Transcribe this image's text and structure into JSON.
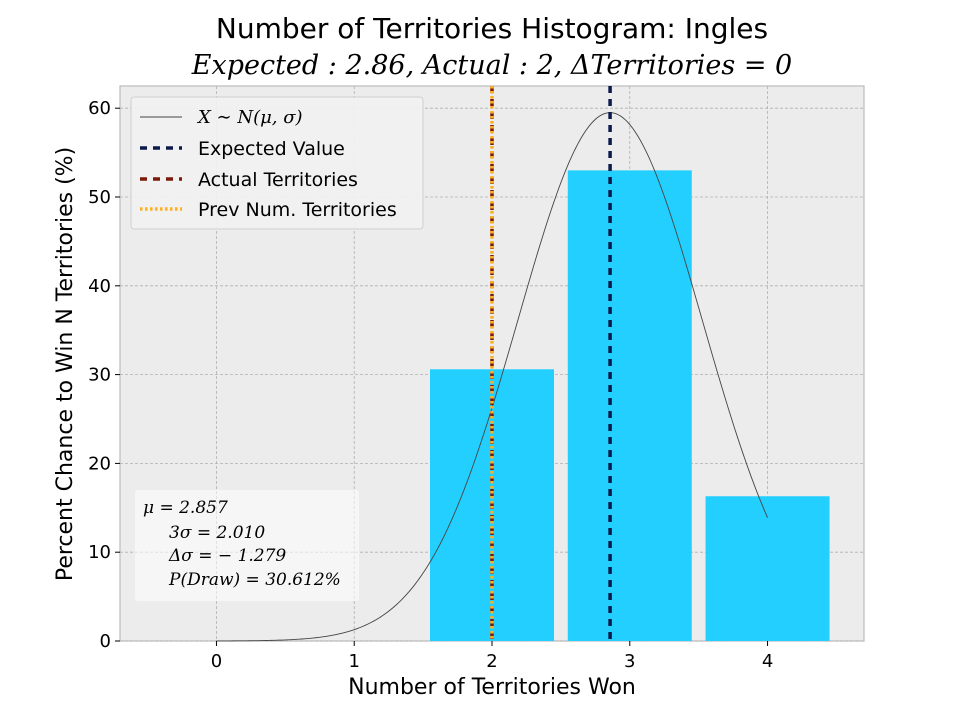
{
  "chart_data": {
    "type": "bar",
    "title": "Number of Territories Histogram: Ingles",
    "subtitle": "Expected : 2.86, Actual : 2, ΔTerritories = 0",
    "xlabel": "Number of Territories Won",
    "ylabel": "Percent Chance to Win N Territories (%)",
    "categories": [
      0,
      1,
      2,
      3,
      4
    ],
    "values": [
      0,
      0,
      30.6,
      53.0,
      16.3
    ],
    "xlim": [
      -0.7,
      4.7
    ],
    "ylim": [
      0,
      62.5
    ],
    "xticks": [
      0,
      1,
      2,
      3,
      4
    ],
    "yticks": [
      0,
      10,
      20,
      30,
      40,
      50,
      60
    ],
    "grid": true,
    "bar_color": "#22cfff",
    "normal_curve": {
      "mu": 2.857,
      "sigma": 0.67,
      "peak": 59.5,
      "x_range": [
        0,
        4
      ],
      "color": "#444444"
    },
    "vlines": [
      {
        "name": "Expected Value",
        "x": 2.857,
        "color": "#0b1a4a",
        "style": "dashed"
      },
      {
        "name": "Actual Territories",
        "x": 2,
        "color": "#7a1a0a",
        "style": "dashed"
      },
      {
        "name": "Prev Num. Territories",
        "x": 2,
        "color": "#ffb020",
        "style": "dotted"
      }
    ],
    "legend": {
      "placement": "top-left",
      "entries": [
        {
          "label": "X ∼ N(μ, σ)",
          "kind": "curve"
        },
        {
          "label": "Expected Value",
          "kind": "vline"
        },
        {
          "label": "Actual Territories",
          "kind": "vline"
        },
        {
          "label": "Prev Num. Territories",
          "kind": "vline"
        }
      ]
    },
    "stats_box": {
      "placement": "bottom-left",
      "lines": [
        "μ = 2.857",
        "3σ = 2.010",
        "Δσ = − 1.279",
        "P(Draw) = 30.612%"
      ]
    }
  }
}
